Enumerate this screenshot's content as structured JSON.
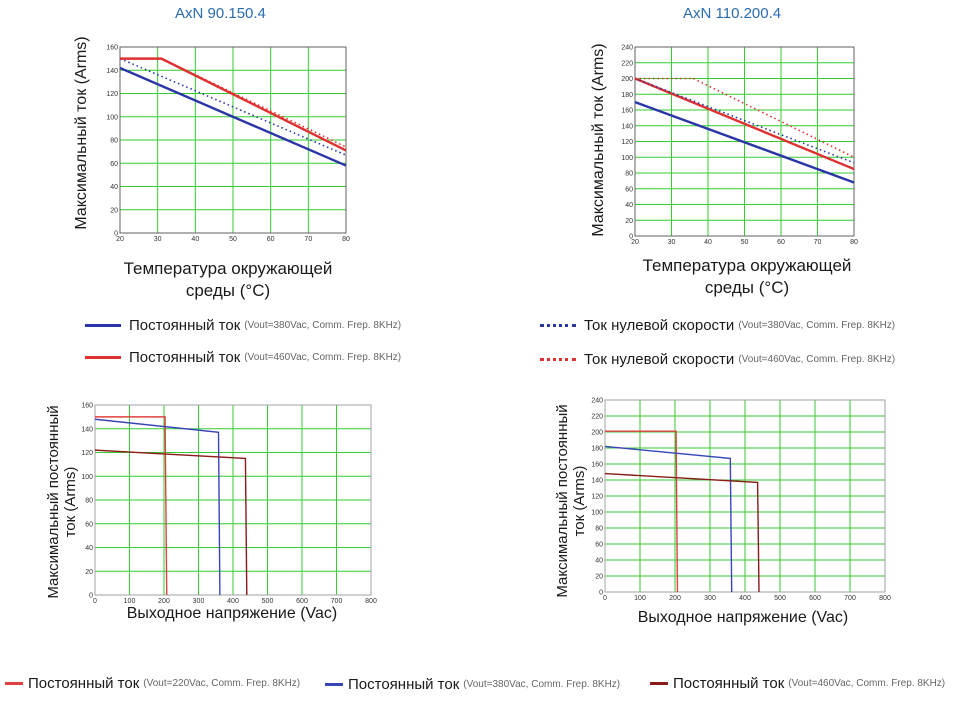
{
  "chart_data": [
    {
      "id": "c1",
      "type": "line",
      "title": "AxN 90.150.4",
      "xlabel": "Температура окружающей среды (°C)",
      "ylabel": "Максимальный ток (Arms)",
      "xlim": [
        20,
        80
      ],
      "ylim": [
        0,
        160
      ],
      "xticks": [
        20,
        30,
        40,
        50,
        60,
        70,
        80
      ],
      "yticks": [
        0,
        20,
        40,
        60,
        80,
        100,
        120,
        140,
        160
      ],
      "grid": true,
      "series": [
        {
          "name": "Постоянный ток 380",
          "style": "solid",
          "color": "#2a35a8",
          "points": [
            [
              20,
              142
            ],
            [
              80,
              58
            ]
          ]
        },
        {
          "name": "Постоянный ток 460",
          "style": "solid",
          "color": "#e03030",
          "points": [
            [
              20,
              150
            ],
            [
              31,
              150
            ],
            [
              80,
              71
            ]
          ]
        },
        {
          "name": "Ток нулевой скорости 380",
          "style": "dotted",
          "color": "#2a35a8",
          "points": [
            [
              20,
              150
            ],
            [
              80,
              67
            ]
          ]
        },
        {
          "name": "Ток нулевой скорости 460",
          "style": "dotted",
          "color": "#e03030",
          "points": [
            [
              20,
              150
            ],
            [
              31,
              150
            ],
            [
              80,
              74
            ]
          ]
        }
      ]
    },
    {
      "id": "c2",
      "type": "line",
      "title": "AxN 110.200.4",
      "xlabel": "Температура окружающей среды (°C)",
      "ylabel": "Максимальный ток (Arms)",
      "xlim": [
        20,
        80
      ],
      "ylim": [
        0,
        240
      ],
      "xticks": [
        20,
        30,
        40,
        50,
        60,
        70,
        80
      ],
      "yticks": [
        0,
        20,
        40,
        60,
        80,
        100,
        120,
        140,
        160,
        180,
        200,
        220,
        240
      ],
      "grid": true,
      "series": [
        {
          "name": "Постоянный ток 380",
          "style": "solid",
          "color": "#2a35a8",
          "points": [
            [
              20,
              170
            ],
            [
              80,
              68
            ]
          ]
        },
        {
          "name": "Постоянный ток 460",
          "style": "solid",
          "color": "#e03030",
          "points": [
            [
              20,
              200
            ],
            [
              80,
              85
            ]
          ]
        },
        {
          "name": "Ток нулевой скорости 380",
          "style": "dotted",
          "color": "#2a35a8",
          "points": [
            [
              20,
              200
            ],
            [
              80,
              93
            ]
          ]
        },
        {
          "name": "Ток нулевой скорости 460",
          "style": "dotted",
          "color": "#e03030",
          "points": [
            [
              20,
              200
            ],
            [
              36,
              200
            ],
            [
              80,
              100
            ]
          ]
        }
      ]
    },
    {
      "id": "c3",
      "type": "line",
      "title": "",
      "xlabel": "Выходное напряжение (Vac)",
      "ylabel": "Максимальный постоянный ток (Arms)",
      "xlim": [
        0,
        800
      ],
      "ylim": [
        0,
        160
      ],
      "xticks": [
        0,
        100,
        200,
        300,
        400,
        500,
        600,
        700,
        800
      ],
      "yticks": [
        0,
        20,
        40,
        60,
        80,
        100,
        120,
        140,
        160
      ],
      "grid": true,
      "series": [
        {
          "name": "220",
          "style": "solid",
          "color": "#e04040",
          "points": [
            [
              0,
              150
            ],
            [
              203,
              150
            ],
            [
              208,
              0
            ]
          ]
        },
        {
          "name": "380",
          "style": "solid",
          "color": "#3a45b8",
          "points": [
            [
              0,
              148
            ],
            [
              358,
              137
            ],
            [
              362,
              0
            ]
          ]
        },
        {
          "name": "460",
          "style": "solid",
          "color": "#8b1a1a",
          "points": [
            [
              0,
              122
            ],
            [
              436,
              115
            ],
            [
              440,
              0
            ]
          ]
        }
      ]
    },
    {
      "id": "c4",
      "type": "line",
      "title": "",
      "xlabel": "Выходное напряжение (Vac)",
      "ylabel": "Максимальный постоянный ток (Arms)",
      "xlim": [
        0,
        800
      ],
      "ylim": [
        0,
        240
      ],
      "xticks": [
        0,
        100,
        200,
        300,
        400,
        500,
        600,
        700,
        800
      ],
      "yticks": [
        0,
        20,
        40,
        60,
        80,
        100,
        120,
        140,
        160,
        180,
        200,
        220,
        240
      ],
      "grid": true,
      "series": [
        {
          "name": "220",
          "style": "solid",
          "color": "#e04040",
          "points": [
            [
              0,
              201
            ],
            [
              203,
              201
            ],
            [
              207,
              0
            ]
          ]
        },
        {
          "name": "380",
          "style": "solid",
          "color": "#3a45b8",
          "points": [
            [
              0,
              182
            ],
            [
              358,
              167
            ],
            [
              362,
              0
            ]
          ]
        },
        {
          "name": "460",
          "style": "solid",
          "color": "#8b1a1a",
          "points": [
            [
              0,
              148
            ],
            [
              436,
              137
            ],
            [
              440,
              0
            ]
          ]
        }
      ]
    }
  ],
  "labels": {
    "c1_title": "AxN 90.150.4",
    "c2_title": "AxN 110.200.4",
    "ylabel_top": "Максимальный ток (Arms)",
    "xlabel_top_line1": "Температура окружающей",
    "xlabel_top_line2": "среды (°C)",
    "ylabel_bottom_line1": "Максимальный постоянный",
    "ylabel_bottom_line2": "ток (Arms)",
    "xlabel_bottom": "Выходное напряжение (Vac)"
  },
  "legend_top": [
    {
      "main": "Постоянный ток",
      "sub": "(Vout=380Vac, Comm. Frep. 8KHz)",
      "color": "#2a35a8",
      "style": "solid"
    },
    {
      "main": "Постоянный ток",
      "sub": "(Vout=460Vac, Comm. Frep. 8KHz)",
      "color": "#e03030",
      "style": "solid"
    },
    {
      "main": "Ток нулевой скорости",
      "sub": "(Vout=380Vac, Comm. Frep. 8KHz)",
      "color": "#2a35a8",
      "style": "dotted"
    },
    {
      "main": "Ток нулевой скорости",
      "sub": "(Vout=460Vac, Comm. Frep. 8KHz)",
      "color": "#e03030",
      "style": "dotted"
    }
  ],
  "legend_bottom": [
    {
      "main": "Постоянный ток",
      "sub": "(Vout=220Vac, Comm. Frep. 8KHz)",
      "color": "#e04040"
    },
    {
      "main": "Постоянный ток",
      "sub": "(Vout=380Vac, Comm. Frep. 8KHz)",
      "color": "#3a45b8"
    },
    {
      "main": "Постоянный ток",
      "sub": "(Vout=460Vac, Comm. Frep. 8KHz)",
      "color": "#8b1a1a"
    }
  ]
}
